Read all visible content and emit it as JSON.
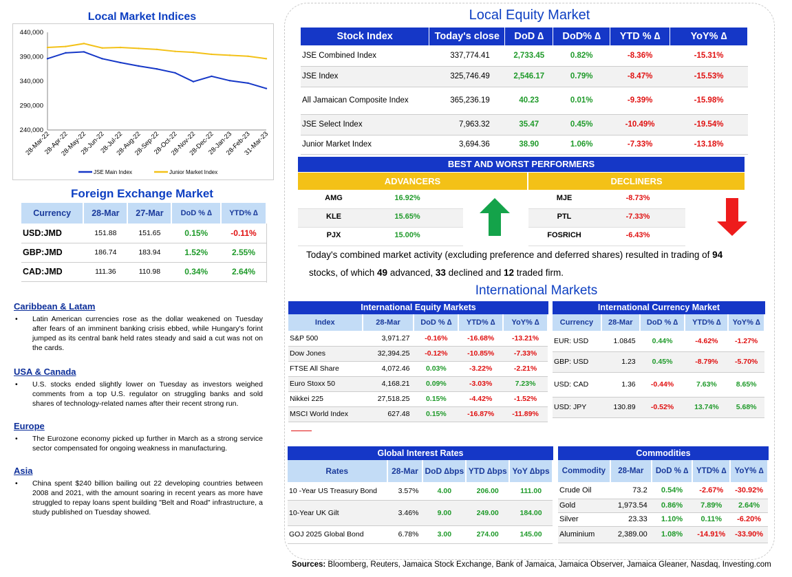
{
  "local_indices": {
    "title": "Local Market Indices",
    "y_ticks": [
      "440,000",
      "390,000",
      "340,000",
      "290,000",
      "240,000"
    ],
    "x_ticks": [
      "28-Mar-22",
      "28-Apr-22",
      "28-May-22",
      "28-Jun-22",
      "28-Jul-22",
      "28-Aug-22",
      "28-Sep-22",
      "28-Oct-22",
      "28-Nov-22",
      "28-Dec-22",
      "28-Jan-23",
      "28-Feb-23",
      "31-Mar-23"
    ],
    "legend": [
      "JSE Main Index",
      "Junior Market Index"
    ]
  },
  "chart_data": {
    "type": "line",
    "x": [
      "28-Mar-22",
      "28-Apr-22",
      "28-May-22",
      "28-Jun-22",
      "28-Jul-22",
      "28-Aug-22",
      "28-Sep-22",
      "28-Oct-22",
      "28-Nov-22",
      "28-Dec-22",
      "28-Jan-23",
      "28-Feb-23",
      "31-Mar-23"
    ],
    "series": [
      {
        "name": "JSE Main Index",
        "color": "#1537c7",
        "values": [
          386000,
          398000,
          400000,
          386000,
          378000,
          371000,
          365000,
          357000,
          339000,
          350000,
          341000,
          336000,
          325000
        ]
      },
      {
        "name": "Junior Market Index",
        "color": "#f3c117",
        "values": [
          409000,
          411000,
          417000,
          408000,
          409000,
          407000,
          405000,
          401000,
          399000,
          395000,
          393000,
          391000,
          386000
        ]
      }
    ],
    "ylim": [
      240000,
      440000
    ]
  },
  "fx": {
    "title": "Foreign Exchange Market",
    "headers": [
      "Currency",
      "28-Mar",
      "27-Mar",
      "DoD % ∆",
      "YTD% ∆"
    ],
    "rows": [
      [
        "USD:JMD",
        "151.88",
        "151.65",
        "0.15%",
        "-0.11%"
      ],
      [
        "GBP:JMD",
        "186.74",
        "183.94",
        "1.52%",
        "2.55%"
      ],
      [
        "CAD:JMD",
        "111.36",
        "110.98",
        "0.34%",
        "2.64%"
      ]
    ]
  },
  "news": [
    {
      "region": "Caribbean & Latam",
      "text": "Latin American currencies rose as the dollar weakened on Tuesday after fears of an imminent banking crisis ebbed, while Hungary's forint jumped as its central bank held rates steady and said a cut was not on the cards."
    },
    {
      "region": "USA & Canada",
      "text": "U.S. stocks ended slightly lower on Tuesday as investors weighed comments from a top U.S. regulator on struggling banks and sold shares of technology-related names after their recent strong run."
    },
    {
      "region": "Europe",
      "text": "The Eurozone economy picked up further in March as a strong service sector compensated for ongoing weakness in manufacturing."
    },
    {
      "region": "Asia",
      "text": "China spent $240 billion bailing out 22 developing countries between 2008 and 2021, with the amount soaring in recent years as more have struggled to repay loans spent building \"Belt and Road\" infrastructure, a study published on Tuesday showed."
    }
  ],
  "equity": {
    "title": "Local Equity Market",
    "headers": [
      "Stock Index",
      "Today's close",
      "DoD ∆",
      "DoD% ∆",
      "YTD % ∆",
      "YoY% ∆"
    ],
    "rows": [
      [
        "JSE Combined Index",
        "337,774.41",
        "2,733.45",
        "0.82%",
        "-8.36%",
        "-15.31%"
      ],
      [
        "JSE Index",
        "325,746.49",
        "2,546.17",
        "0.79%",
        "-8.47%",
        "-15.53%"
      ],
      [
        "All Jamaican Composite Index",
        "365,236.19",
        "40.23",
        "0.01%",
        "-9.39%",
        "-15.98%"
      ],
      [
        "JSE Select Index",
        "7,963.32",
        "35.47",
        "0.45%",
        "-10.49%",
        "-19.54%"
      ],
      [
        "Junior Market Index",
        "3,694.36",
        "38.90",
        "1.06%",
        "-7.33%",
        "-13.18%"
      ]
    ]
  },
  "performers": {
    "title": "BEST AND WORST PERFORMERS",
    "adv_label": "ADVANCERS",
    "dec_label": "DECLINERS",
    "advancers": [
      [
        "AMG",
        "16.92%"
      ],
      [
        "KLE",
        "15.65%"
      ],
      [
        "PJX",
        "15.00%"
      ]
    ],
    "decliners": [
      [
        "MJE",
        "-8.73%"
      ],
      [
        "PTL",
        "-7.33%"
      ],
      [
        "FOSRICH",
        "-6.43%"
      ]
    ]
  },
  "summary": {
    "t1": "Today's combined market activity (excluding preference and deferred shares) resulted in trading of ",
    "n1": "94",
    "t2": "stocks, of which ",
    "n2": "49",
    "t3": " advanced, ",
    "n3": "33",
    "t4": " declined and ",
    "n4": "12",
    "t5": " traded firm."
  },
  "intl_title": "International Markets",
  "intl_eq": {
    "title": "International Equity Markets",
    "headers": [
      "Index",
      "28-Mar",
      "DoD % ∆",
      "YTD% ∆",
      "YoY% ∆"
    ],
    "rows": [
      [
        "S&P 500",
        "3,971.27",
        "-0.16%",
        "-16.68%",
        "-13.21%"
      ],
      [
        "Dow Jones",
        "32,394.25",
        "-0.12%",
        "-10.85%",
        "-7.33%"
      ],
      [
        "FTSE All Share",
        "4,072.46",
        "0.03%",
        "-3.22%",
        "-2.21%"
      ],
      [
        "Euro Stoxx 50",
        "4,168.21",
        "0.09%",
        "-3.03%",
        "7.23%"
      ],
      [
        "Nikkei 225",
        "27,518.25",
        "0.15%",
        "-4.42%",
        "-1.52%"
      ],
      [
        "MSCI World Index",
        "627.48",
        "0.15%",
        "-16.87%",
        "-11.89%"
      ]
    ]
  },
  "intl_fx": {
    "title": "International Currency Market",
    "headers": [
      "Currency",
      "28-Mar",
      "DoD % ∆",
      "YTD% ∆",
      "YoY% ∆"
    ],
    "rows": [
      [
        "EUR: USD",
        "1.0845",
        "0.44%",
        "-4.62%",
        "-1.27%"
      ],
      [
        "GBP: USD",
        "1.23",
        "0.45%",
        "-8.79%",
        "-5.70%"
      ],
      [
        "USD: CAD",
        "1.36",
        "-0.44%",
        "7.63%",
        "8.65%"
      ],
      [
        "USD: JPY",
        "130.89",
        "-0.52%",
        "13.74%",
        "5.68%"
      ]
    ]
  },
  "rates": {
    "title": "Global Interest Rates",
    "headers": [
      "Rates",
      "28-Mar",
      "DoD ∆bps",
      "YTD ∆bps",
      "YoY ∆bps"
    ],
    "rows": [
      [
        "10 -Year US Treasury Bond",
        "3.57%",
        "4.00",
        "206.00",
        "111.00"
      ],
      [
        "10-Year UK Gilt",
        "3.46%",
        "9.00",
        "249.00",
        "184.00"
      ],
      [
        "GOJ 2025 Global Bond",
        "6.78%",
        "3.00",
        "274.00",
        "145.00"
      ]
    ]
  },
  "commod": {
    "title": "Commodities",
    "headers": [
      "Commodity",
      "28-Mar",
      "DoD % ∆",
      "YTD% ∆",
      "YoY% ∆"
    ],
    "rows": [
      [
        "Crude Oil",
        "73.2",
        "0.54%",
        "-2.67%",
        "-30.92%"
      ],
      [
        "Gold",
        "1,973.54",
        "0.86%",
        "7.89%",
        "2.64%"
      ],
      [
        "Silver",
        "23.33",
        "1.10%",
        "0.11%",
        "-6.20%"
      ],
      [
        "Aluminium",
        "2,389.00",
        "1.08%",
        "-14.91%",
        "-33.90%"
      ]
    ]
  },
  "sources": {
    "label": "Sources:",
    "text": " Bloomberg, Reuters, Jamaica Stock Exchange, Bank of Jamaica, Jamaica Observer, Jamaica Gleaner, Nasdaq, Investing.com"
  }
}
